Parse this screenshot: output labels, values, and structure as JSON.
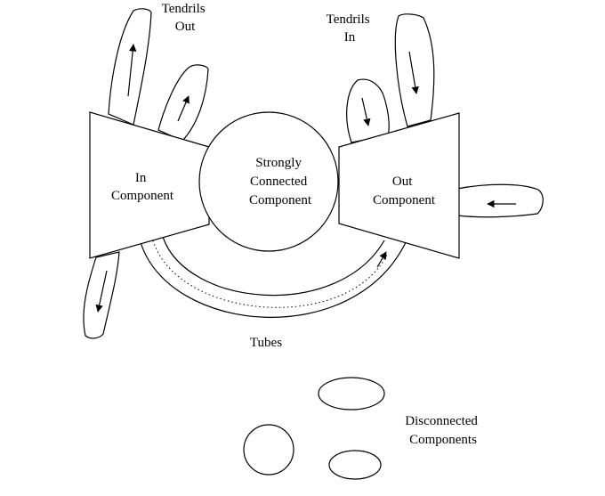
{
  "diagram": {
    "tendrils_out": {
      "line1": "Tendrils",
      "line2": "Out"
    },
    "tendrils_in": {
      "line1": "Tendrils",
      "line2": "In"
    },
    "in_component": {
      "line1": "In",
      "line2": "Component"
    },
    "scc": {
      "line1": "Strongly",
      "line2": "Connected",
      "line3": "Component"
    },
    "out_component": {
      "line1": "Out",
      "line2": "Component"
    },
    "tubes": "Tubes",
    "disconnected": {
      "line1": "Disconnected",
      "line2": "Components"
    }
  }
}
